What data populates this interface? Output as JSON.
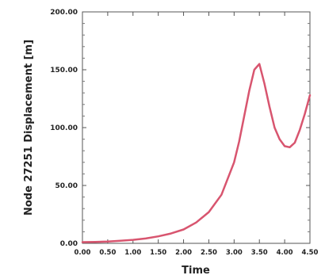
{
  "chart_data": {
    "type": "line",
    "title": "",
    "xlabel": "Time",
    "ylabel": "Node 27251 Displacement [m]",
    "xlim": [
      0,
      4.5
    ],
    "ylim": [
      0,
      200
    ],
    "xticks": [
      0,
      0.5,
      1.0,
      1.5,
      2.0,
      2.5,
      3.0,
      3.5,
      4.0,
      4.5
    ],
    "xtick_labels": [
      "0.00",
      "0.50",
      "1.00",
      "1.50",
      "2.00",
      "2.50",
      "3.00",
      "3.50",
      "4.00",
      "4.50"
    ],
    "yticks": [
      0,
      50,
      100,
      150,
      200
    ],
    "ytick_labels": [
      "0.00",
      "50.00",
      "100.00",
      "150.00",
      "200.00"
    ],
    "grid": false,
    "legend": "none",
    "series": [
      {
        "color": "#d8556f",
        "x": [
          0.0,
          0.25,
          0.5,
          0.75,
          1.0,
          1.25,
          1.5,
          1.75,
          2.0,
          2.25,
          2.5,
          2.75,
          3.0,
          3.1,
          3.2,
          3.3,
          3.4,
          3.5,
          3.6,
          3.7,
          3.8,
          3.9,
          4.0,
          4.1,
          4.2,
          4.3,
          4.4,
          4.5
        ],
        "y": [
          1.0,
          1.2,
          1.6,
          2.2,
          3.0,
          4.2,
          6.0,
          8.5,
          12.0,
          18.0,
          27.0,
          42.0,
          70.0,
          88.0,
          110.0,
          132.0,
          150.0,
          155.0,
          138.0,
          118.0,
          100.0,
          90.0,
          84.0,
          83.0,
          87.0,
          98.0,
          112.0,
          128.0
        ]
      }
    ]
  }
}
